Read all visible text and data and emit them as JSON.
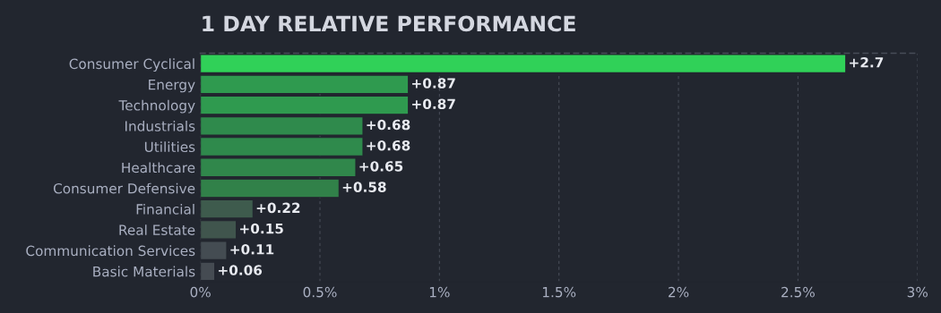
{
  "chart_data": {
    "type": "bar",
    "orientation": "horizontal",
    "title": "1 DAY RELATIVE PERFORMANCE",
    "categories": [
      "Consumer Cyclical",
      "Energy",
      "Technology",
      "Industrials",
      "Utilities",
      "Healthcare",
      "Consumer Defensive",
      "Financial",
      "Real Estate",
      "Communication Services",
      "Basic Materials"
    ],
    "values": [
      2.7,
      0.87,
      0.87,
      0.68,
      0.68,
      0.65,
      0.58,
      0.22,
      0.15,
      0.11,
      0.06
    ],
    "value_labels": [
      "+2.7",
      "+0.87",
      "+0.87",
      "+0.68",
      "+0.68",
      "+0.65",
      "+0.58",
      "+0.22",
      "+0.15",
      "+0.11",
      "+0.06"
    ],
    "colors": [
      "#30d158",
      "#2f9a4f",
      "#2f9a4f",
      "#2f8a4c",
      "#2f8a4c",
      "#30874b",
      "#318149",
      "#3e5b4d",
      "#40554d",
      "#444c52",
      "#454b52"
    ],
    "xlim": [
      0,
      3
    ],
    "xticks": [
      {
        "value": 0,
        "label": "0%"
      },
      {
        "value": 0.5,
        "label": "0.5%"
      },
      {
        "value": 1,
        "label": "1%"
      },
      {
        "value": 1.5,
        "label": "1.5%"
      },
      {
        "value": 2,
        "label": "2%"
      },
      {
        "value": 2.5,
        "label": "2.5%"
      },
      {
        "value": 3,
        "label": "3%"
      }
    ],
    "grid": "x"
  }
}
